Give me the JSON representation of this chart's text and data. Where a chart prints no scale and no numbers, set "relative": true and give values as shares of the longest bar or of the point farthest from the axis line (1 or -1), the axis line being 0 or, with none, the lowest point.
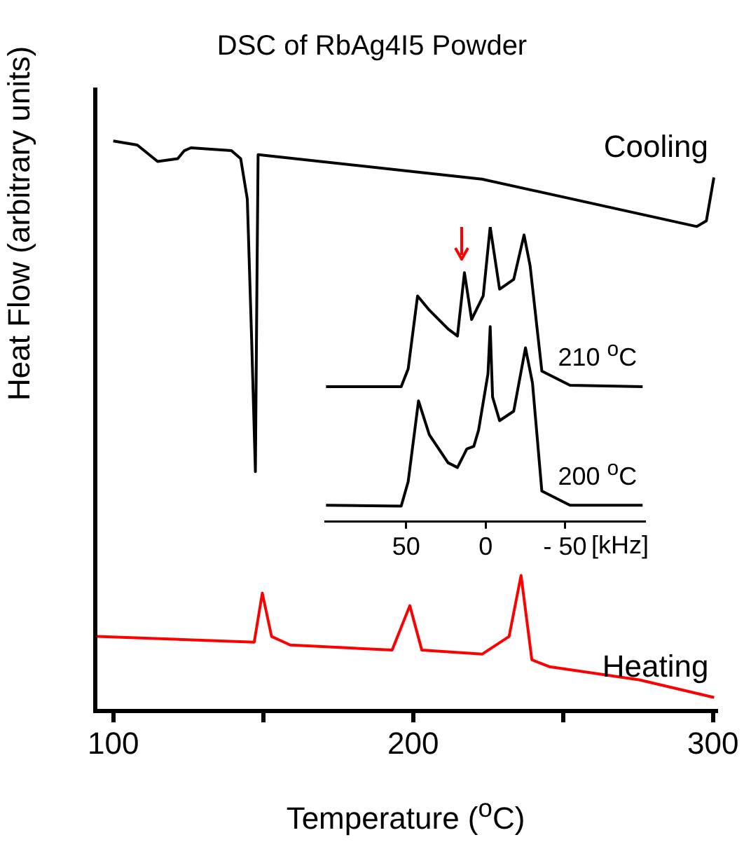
{
  "chart_data": [
    {
      "type": "line",
      "title": "DSC of RbAg4I5 Powder",
      "xlabel": "Temperature ($^{o}$C)",
      "ylabel": "Heat Flow (arbitrary units)",
      "relative": true,
      "xlim": [
        94,
        301
      ],
      "xticks": [
        100,
        {
          "value": 150,
          "label": null
        },
        200,
        {
          "value": 250,
          "label": null
        },
        300
      ],
      "marker": "none",
      "legend": false,
      "series": [
        {
          "name": "Cooling",
          "color": "#000000",
          "x": [
            100,
            108,
            114.8,
            121.5,
            123.7,
            125.9,
            139.4,
            142.5,
            144.7,
            146.1,
            147.4,
            147.9,
            148.3,
            223,
            294.6,
            297.8,
            300.3
          ],
          "values": [
            1.0,
            0.993,
            0.964,
            0.969,
            0.983,
            0.988,
            0.983,
            0.969,
            0.898,
            0.66,
            0.42,
            0.741,
            0.976,
            0.933,
            0.85,
            0.86,
            0.936
          ]
        },
        {
          "name": "Heating",
          "color": "#ff0000",
          "x": [
            94.6,
            147,
            149.7,
            152.8,
            159,
            193,
            198.9,
            202.9,
            223,
            232,
            236,
            239.6,
            245.4,
            275.4,
            300.4
          ],
          "values": [
            0.131,
            0.121,
            0.207,
            0.131,
            0.116,
            0.107,
            0.185,
            0.107,
            0.1,
            0.131,
            0.238,
            0.09,
            0.078,
            0.055,
            0.024
          ]
        }
      ]
    },
    {
      "type": "line",
      "xlabel": "[kHz]",
      "relative": true,
      "xlim": [
        101,
        -100
      ],
      "xticks": [
        50,
        0,
        {
          "value": -50,
          "label": "- 50"
        }
      ],
      "marker": "none",
      "legend": false,
      "series": [
        {
          "name": "210 $^{o}$C",
          "color": "#000000",
          "x": [
            100.4,
            53.1,
            48.7,
            42.8,
            35.4,
            23.6,
            17.7,
            13.3,
            8.8,
            1.5,
            -2.9,
            -8.8,
            -17.7,
            -24.2,
            -28,
            -35.4,
            -53.1,
            -98.8
          ],
          "values": [
            0.458,
            0.458,
            0.519,
            0.766,
            0.718,
            0.654,
            0.63,
            0.845,
            0.686,
            0.766,
            1.0,
            0.789,
            0.822,
            0.973,
            0.869,
            0.511,
            0.463,
            0.458
          ]
        },
        {
          "name": "200 $^{o}$C",
          "color": "#000000",
          "x": [
            100.4,
            53.1,
            48.7,
            42.2,
            35.4,
            23.6,
            17.7,
            11.8,
            7.4,
            4.4,
            -1.5,
            -2.9,
            -4.4,
            -8.8,
            -17.7,
            -25.1,
            -29.5,
            -35.4,
            -53.1,
            -98.8
          ],
          "values": [
            0.056,
            0.053,
            0.136,
            0.41,
            0.295,
            0.2,
            0.184,
            0.247,
            0.256,
            0.311,
            0.502,
            0.662,
            0.423,
            0.343,
            0.375,
            0.59,
            0.471,
            0.104,
            0.056,
            0.056
          ]
        }
      ]
    }
  ]
}
